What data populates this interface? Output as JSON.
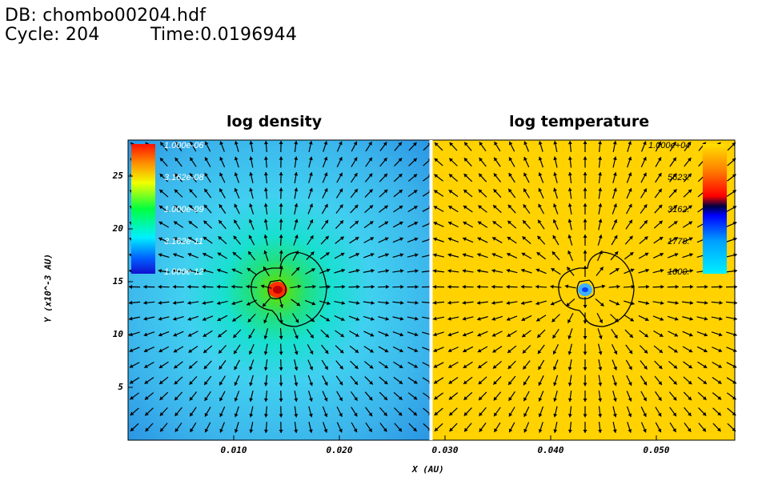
{
  "header": {
    "db_line": "DB: chombo00204.hdf",
    "cycle_line": "Cycle: 204",
    "time_line": "Time:0.0196944"
  },
  "panels": [
    {
      "title": "log density",
      "colorbar_ticks": [
        "1.000e-06",
        "3.162e-08",
        "1.000e-09",
        "3.162e-11",
        "1.000e-12"
      ]
    },
    {
      "title": "log temperature",
      "colorbar_ticks": [
        "1.000e+04",
        "5623.",
        "3162.",
        "1778.",
        "1000."
      ]
    }
  ],
  "axes": {
    "xlabel": "X (AU)",
    "ylabel": "Y (x10^-3 AU)",
    "xticks": [
      "0.010",
      "0.020",
      "0.030",
      "0.040",
      "0.050"
    ],
    "yticks": [
      "25",
      "20",
      "15",
      "10",
      "5"
    ]
  },
  "colors": {
    "temperature_field": "#ffd200",
    "density_background": "#3ec0f0",
    "arrow": "#000000"
  }
}
